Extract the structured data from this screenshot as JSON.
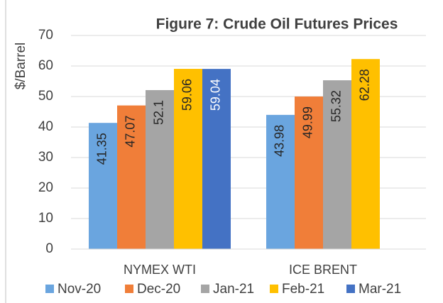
{
  "chart_data": {
    "type": "bar",
    "title": "Figure 7: Crude Oil Futures Prices",
    "y_label": "$/Barrel",
    "categories": [
      "NYMEX WTI",
      "ICE BRENT"
    ],
    "series": [
      {
        "name": "Nov-20",
        "color": "#6aa5df",
        "label_color": "#262626",
        "values": [
          41.35,
          43.98
        ]
      },
      {
        "name": "Dec-20",
        "color": "#f07e39",
        "label_color": "#262626",
        "values": [
          47.07,
          49.99
        ]
      },
      {
        "name": "Jan-21",
        "color": "#a5a5a5",
        "label_color": "#262626",
        "values": [
          52.1,
          55.32
        ]
      },
      {
        "name": "Feb-21",
        "color": "#ffc000",
        "label_color": "#262626",
        "values": [
          59.06,
          62.28
        ]
      },
      {
        "name": "Mar-21",
        "color": "#4472c4",
        "label_color": "#ffffff",
        "values": [
          59.04,
          null
        ]
      }
    ],
    "ylim": [
      0,
      70
    ],
    "yticks": [
      0,
      10,
      20,
      30,
      40,
      50,
      60,
      70
    ],
    "grid": true,
    "legend": "bottom"
  }
}
